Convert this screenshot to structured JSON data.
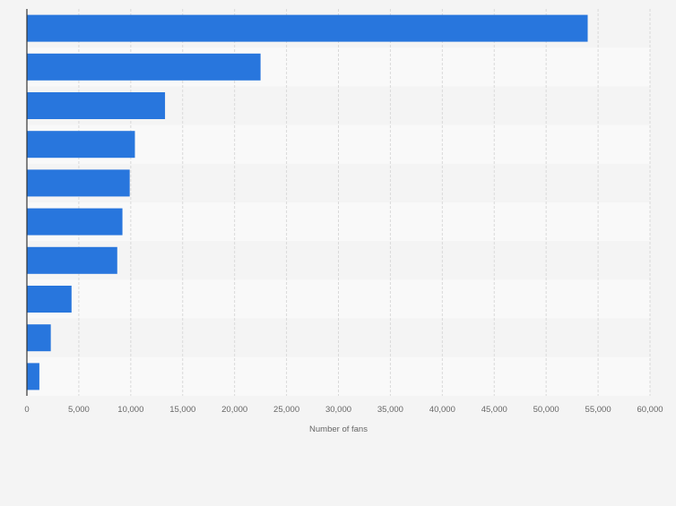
{
  "chart_data": {
    "type": "bar",
    "orientation": "horizontal",
    "xlabel": "Number of fans",
    "xlim": [
      0,
      60000
    ],
    "x_ticks": [
      0,
      5000,
      10000,
      15000,
      20000,
      25000,
      30000,
      35000,
      40000,
      45000,
      50000,
      55000,
      60000
    ],
    "x_tick_labels": [
      "0",
      "5,000",
      "10,000",
      "15,000",
      "20,000",
      "25,000",
      "30,000",
      "35,000",
      "40,000",
      "45,000",
      "50,000",
      "55,000",
      "60,000"
    ],
    "values": [
      54000,
      22500,
      13300,
      10400,
      9900,
      9200,
      8700,
      4300,
      2300,
      1200
    ],
    "grid": true,
    "colors": {
      "bar": "#2876dd",
      "page_background": "#f4f4f4",
      "band_light": "#f9f9f9",
      "band_dark": "#f4f4f4",
      "gridline": "#d9d9d9",
      "axis": "#333333",
      "tick_text": "#666666"
    }
  }
}
